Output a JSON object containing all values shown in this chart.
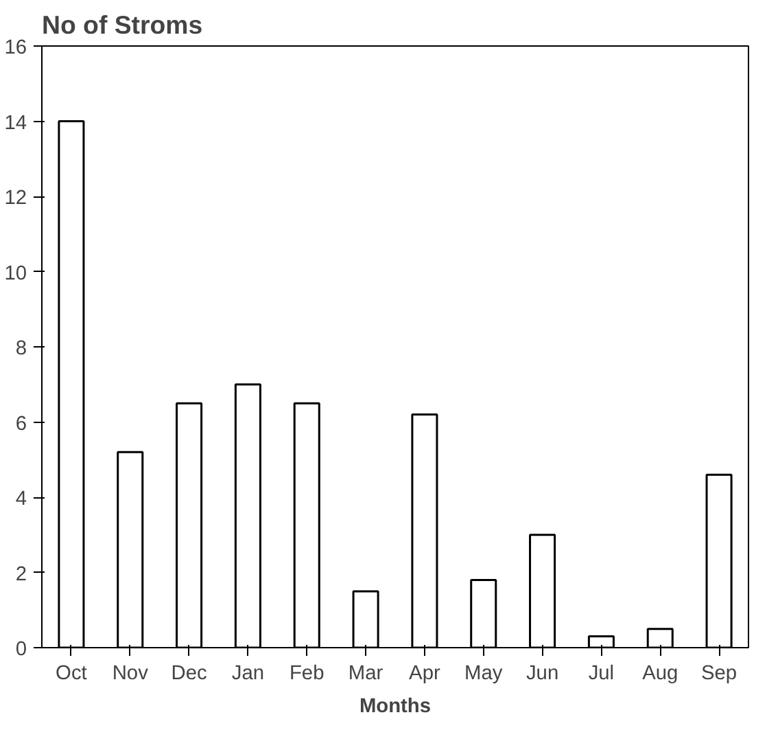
{
  "chart_data": {
    "type": "bar",
    "title": "No of Stroms",
    "xlabel": "Months",
    "categories": [
      "Oct",
      "Nov",
      "Dec",
      "Jan",
      "Feb",
      "Mar",
      "Apr",
      "May",
      "Jun",
      "Jul",
      "Aug",
      "Sep"
    ],
    "values": [
      14,
      5.2,
      6.5,
      7,
      6.5,
      1.5,
      6.2,
      1.8,
      3,
      0.3,
      0.5,
      4.6
    ],
    "color": "#000000",
    "ylim": [
      0,
      16
    ],
    "yticks": [
      0,
      2,
      4,
      6,
      8,
      10,
      12,
      14,
      16
    ],
    "grid": false
  }
}
